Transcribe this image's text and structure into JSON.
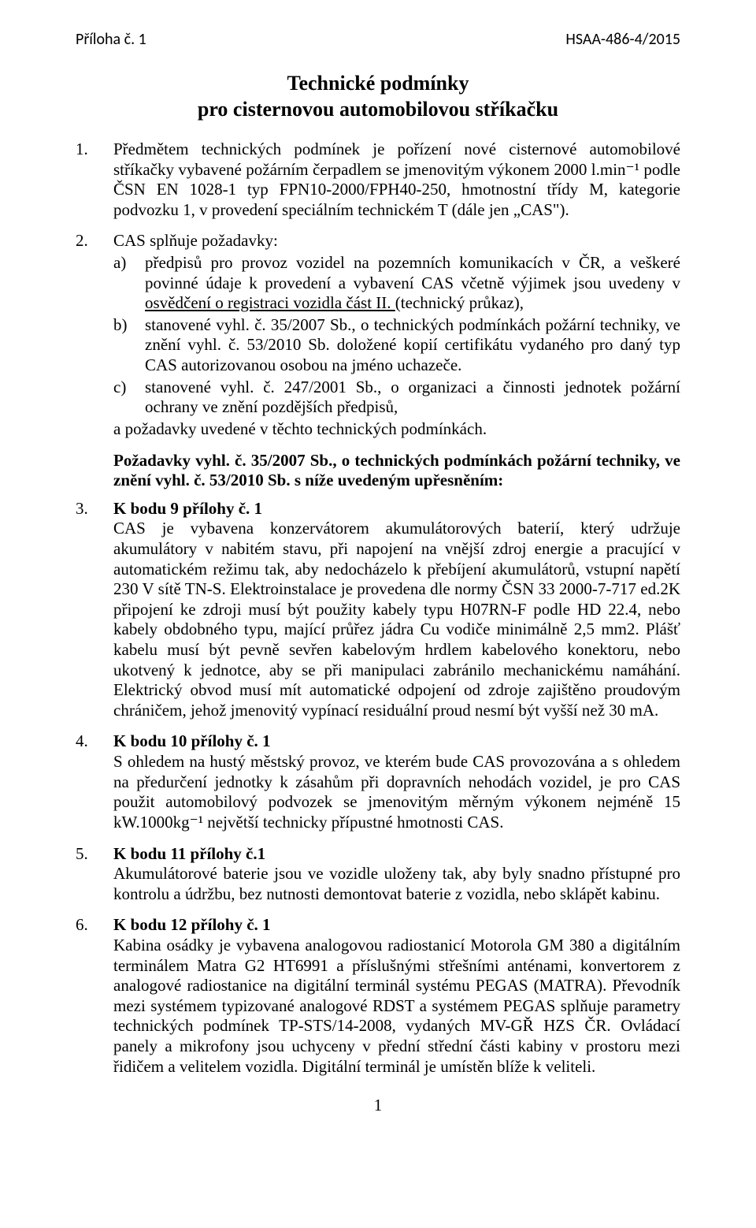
{
  "header": {
    "left": "Příloha č. 1",
    "right": "HSAA-486-4/2015"
  },
  "title_line1": "Technické podmínky",
  "title_line2": "pro cisternovou automobilovou stříkačku",
  "item1": "Předmětem technických podmínek je pořízení nové cisternové automobilové stříkačky vybavené požárním čerpadlem se jmenovitým výkonem 2000 l.min⁻¹ podle ČSN EN 1028-1 typ FPN10-2000/FPH40-250, hmotnostní třídy M, kategorie podvozku 1, v provedení speciálním technickém T (dále jen „CAS\").",
  "item2_intro": "CAS splňuje požadavky:",
  "item2_a_pre": "předpisů pro provoz vozidel na pozemních komunikacích v ČR, a veškeré povinné údaje k provedení a vybavení CAS včetně výjimek jsou uvedeny v ",
  "item2_a_und": "osvědčení o registraci vozidla část II. ",
  "item2_a_post": "(technický průkaz),",
  "item2_b": "stanovené vyhl. č. 35/2007 Sb., o technických podmínkách požární techniky, ve znění vyhl. č. 53/2010 Sb. doložené kopií certifikátu vydaného pro daný typ CAS autorizovanou osobou na jméno uchazeče.",
  "item2_c": "stanovené vyhl. č. 247/2001 Sb., o organizaci a činnosti jednotek požární ochrany ve znění pozdějších předpisů,",
  "item2_trailing": "a požadavky uvedené v těchto technických podmínkách.",
  "mid_paragraph": "Požadavky vyhl. č. 35/2007 Sb., o technických podmínkách požární techniky, ve znění vyhl. č. 53/2010 Sb. s níže uvedeným upřesněním:",
  "item3_head": "K bodu 9 přílohy č. 1",
  "item3_body": "CAS je vybavena konzervátorem akumulátorových baterií, který udržuje akumulátory v nabitém stavu, při napojení na vnější zdroj energie a pracující v automatickém režimu tak, aby nedocházelo k přebíjení akumulátorů, vstupní napětí 230 V sítě TN-S. Elektroinstalace je provedena dle normy ČSN 33 2000-7-717 ed.2K připojení ke zdroji musí být použity kabely typu H07RN-F podle HD 22.4, nebo kabely obdobného typu, mající průřez jádra Cu vodiče minimálně 2,5 mm2. Plášť kabelu musí být pevně sevřen kabelovým hrdlem kabelového konektoru, nebo ukotvený k jednotce, aby se při manipulaci zabránilo mechanickému namáhání. Elektrický obvod musí mít automatické odpojení od zdroje zajištěno proudovým chráničem, jehož jmenovitý vypínací residuální proud nesmí být vyšší než 30 mA.",
  "item4_head": "K bodu 10 přílohy č. 1",
  "item4_body": "S ohledem na hustý městský provoz, ve kterém bude CAS provozována a s ohledem na předurčení jednotky k zásahům při dopravních nehodách vozidel, je pro CAS použit automobilový podvozek se jmenovitým měrným výkonem nejméně 15 kW.1000kg⁻¹ největší technicky přípustné hmotnosti CAS.",
  "item5_head": "K bodu 11 přílohy č.1",
  "item5_body": "Akumulátorové baterie jsou ve vozidle uloženy tak, aby byly snadno přístupné pro kontrolu a údržbu, bez nutnosti demontovat baterie z vozidla, nebo sklápět kabinu.",
  "item6_head": "K bodu 12 přílohy č. 1",
  "item6_body": "Kabina osádky je vybavena analogovou radiostanicí Motorola GM 380 a digitálním terminálem Matra G2 HT6991 a příslušnými střešními anténami, konvertorem z analogové radiostanice na digitální terminál systému PEGAS (MATRA). Převodník mezi systémem typizované analogové RDST a systémem PEGAS splňuje parametry technických podmínek TP-STS/14-2008, vydaných MV-GŘ HZS ČR. Ovládací panely a mikrofony jsou uchyceny v přední střední části kabiny v prostoru mezi řidičem a velitelem vozidla. Digitální terminál je umístěn blíže k veliteli.",
  "page_number": "1",
  "colors": {
    "text": "#000000",
    "background": "#ffffff"
  }
}
